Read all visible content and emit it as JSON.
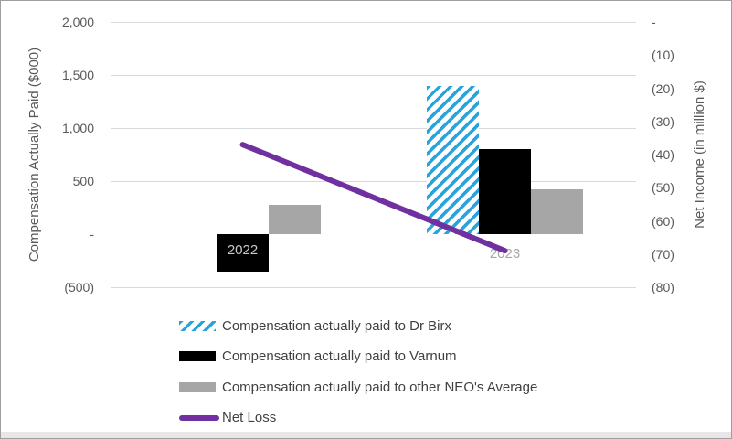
{
  "chart_data": {
    "type": "bar",
    "subtype": "combo-bar-line-dual-axis",
    "categories": [
      "2022",
      "2023"
    ],
    "series": [
      {
        "name": "Compensation actually paid to Dr Birx",
        "type": "bar",
        "axis": "left",
        "values": [
          0,
          1400
        ],
        "color": "#29a3dc",
        "pattern": "diagonal-hatch"
      },
      {
        "name": "Compensation actually paid to Varnum",
        "type": "bar",
        "axis": "left",
        "values": [
          -350,
          800
        ],
        "color": "#000000",
        "pattern": "solid"
      },
      {
        "name": "Compensation actually paid to other NEO's Average",
        "type": "bar",
        "axis": "left",
        "values": [
          280,
          420
        ],
        "color": "#a6a6a6",
        "pattern": "solid"
      },
      {
        "name": "Net Loss",
        "type": "line",
        "axis": "right",
        "values": [
          -37,
          -69
        ],
        "color": "#7030a0"
      }
    ],
    "left_axis": {
      "label": "Compensation Actually Paid ($000)",
      "min": -500,
      "max": 2000,
      "tick_labels": [
        "2,000",
        "1,500",
        "1,000",
        "500",
        "-",
        "(500)"
      ],
      "tick_values": [
        2000,
        1500,
        1000,
        500,
        0,
        -500
      ]
    },
    "right_axis": {
      "label": "Net Income (in million $)",
      "min": -80,
      "max": 0,
      "tick_labels": [
        "-",
        "(10)",
        "(20)",
        "(30)",
        "(40)",
        "(50)",
        "(60)",
        "(70)",
        "(80)"
      ],
      "tick_values": [
        0,
        -10,
        -20,
        -30,
        -40,
        -50,
        -60,
        -70,
        -80
      ]
    },
    "gridlines": [
      2000,
      1500,
      1000,
      500,
      -500
    ],
    "grid_color": "#d9d9d9",
    "legend_position": "bottom-left"
  }
}
